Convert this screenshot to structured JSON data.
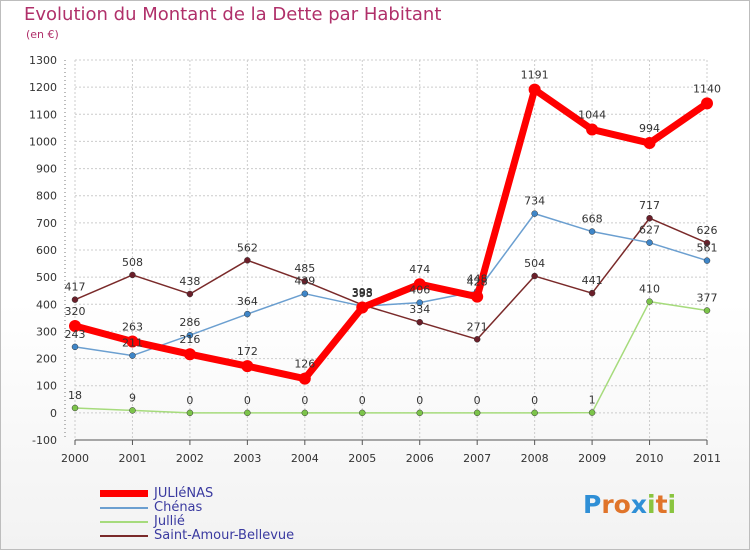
{
  "title": "Evolution du Montant de la Dette par Habitant",
  "unit": "(en €)",
  "logo": {
    "letters": [
      "P",
      "r",
      "o",
      "x",
      "i",
      "t",
      "i"
    ],
    "colors": [
      "#2f8fd6",
      "#e0742a",
      "#e0742a",
      "#2f8fd6",
      "#8ac43f",
      "#e0742a",
      "#8ac43f"
    ]
  },
  "chart_data": {
    "type": "line",
    "x": [
      "2000",
      "2001",
      "2002",
      "2003",
      "2004",
      "2005",
      "2006",
      "2007",
      "2008",
      "2009",
      "2010",
      "2011"
    ],
    "ylim": [
      -100,
      1300
    ],
    "yticks": [
      "-100",
      "0",
      "100",
      "200",
      "300",
      "400",
      "500",
      "600",
      "700",
      "800",
      "900",
      "1000",
      "1100",
      "1200",
      "1300"
    ],
    "grid": true,
    "legend_position": "bottom-left",
    "series": [
      {
        "name": "Saint-Amour-Bellevue",
        "color": "#7a2a2a",
        "dot": "#6b1f2a",
        "width": 1.5,
        "r": 3,
        "values": [
          417,
          508,
          438,
          562,
          485,
          398,
          334,
          271,
          504,
          441,
          717,
          626
        ],
        "labels": [
          "417",
          "508",
          "438",
          "562",
          "485",
          "398",
          "334",
          "271",
          "504",
          "441",
          "717",
          "626"
        ]
      },
      {
        "name": "Jullié",
        "color": "#a6db7c",
        "dot": "#7cc44a",
        "width": 1.5,
        "r": 3,
        "values": [
          18,
          9,
          0,
          0,
          0,
          0,
          0,
          0,
          0,
          1,
          410,
          377
        ],
        "labels": [
          "18",
          "9",
          "0",
          "0",
          "0",
          "0",
          "0",
          "0",
          "0",
          "1",
          "410",
          "377"
        ]
      },
      {
        "name": "Chénas",
        "color": "#6b9fd0",
        "dot": "#3f86c8",
        "width": 1.5,
        "r": 3,
        "values": [
          243,
          211,
          286,
          364,
          439,
          393,
          406,
          448,
          734,
          668,
          627,
          561
        ],
        "labels": [
          "243",
          "211",
          "286",
          "364",
          "439",
          "393",
          "406",
          "448",
          "734",
          "668",
          "627",
          "561"
        ]
      },
      {
        "name": "JULIéNAS",
        "color": "#ff0000",
        "dot": "#ff0000",
        "width": 7,
        "r": 6,
        "values": [
          320,
          263,
          216,
          172,
          126,
          388,
          474,
          428,
          1191,
          1044,
          994,
          1140
        ],
        "labels": [
          "320",
          "263",
          "216",
          "172",
          "126",
          "388",
          "474",
          "428",
          "1191",
          "1044",
          "994",
          "1140"
        ]
      }
    ]
  },
  "legend": [
    {
      "name": "JULIéNAS",
      "color": "#ff0000",
      "thickness": 7
    },
    {
      "name": "Chénas",
      "color": "#6b9fd0",
      "thickness": 2
    },
    {
      "name": "Jullié",
      "color": "#a6db7c",
      "thickness": 2
    },
    {
      "name": "Saint-Amour-Bellevue",
      "color": "#7a2a2a",
      "thickness": 2
    }
  ]
}
